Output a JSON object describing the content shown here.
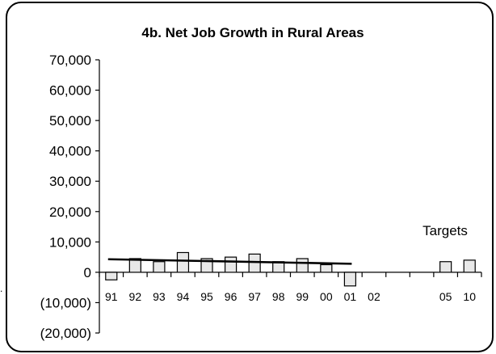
{
  "chart_data": {
    "type": "bar",
    "title": "4b. Net Job Growth in Rural Areas",
    "xlabel": "",
    "ylabel": "",
    "ylim": [
      -20000,
      70000
    ],
    "yticks": [
      70000,
      60000,
      50000,
      40000,
      30000,
      20000,
      10000,
      0,
      -10000,
      -20000
    ],
    "ytick_labels": [
      "70,000",
      "60,000",
      "50,000",
      "40,000",
      "30,000",
      "20,000",
      "10,000",
      "0",
      "(10,000)",
      "(20,000)"
    ],
    "categories": [
      "91",
      "92",
      "93",
      "94",
      "95",
      "96",
      "97",
      "98",
      "99",
      "00",
      "01",
      "02",
      "",
      "",
      "05",
      "10"
    ],
    "values": [
      -2500,
      4500,
      3500,
      6500,
      4500,
      5000,
      6000,
      3500,
      4500,
      2500,
      -4500,
      null,
      null,
      null,
      3500,
      4000
    ],
    "trendline": {
      "x_start": "91",
      "x_end": "01",
      "y_start": 4300,
      "y_end": 2800
    },
    "annotation": "Targets",
    "grid": false,
    "legend": "none",
    "colors": {
      "bar_fill": "#e8e8e8",
      "bar_stroke": "#000000",
      "trend": "#000000",
      "frame": "#000000"
    }
  }
}
